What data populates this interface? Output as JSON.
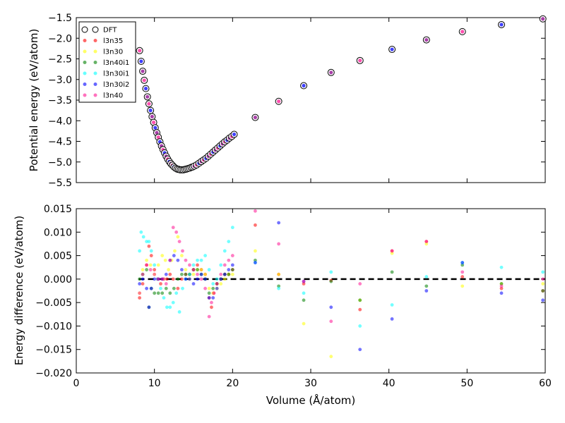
{
  "chart_data": [
    {
      "type": "scatter",
      "ylabel": "Potential energy (eV/atom)",
      "xlim": [
        0,
        60
      ],
      "ylim": [
        -5.5,
        -1.5
      ],
      "xticks": [],
      "yticks": [
        "−1.5",
        "−2.0",
        "−2.5",
        "−3.0",
        "−3.5",
        "−4.0",
        "−4.5",
        "−5.0",
        "−5.5"
      ],
      "ytick_values": [
        -1.5,
        -2.0,
        -2.5,
        -3.0,
        -3.5,
        -4.0,
        -4.5,
        -5.0,
        -5.5
      ],
      "legend_placement": "top-left",
      "legend": [
        {
          "name": "DFT",
          "color": "#ffffff",
          "style": "open-circle"
        },
        {
          "name": "l3n35",
          "color": "#ff0000"
        },
        {
          "name": "l3n30",
          "color": "#ffff00"
        },
        {
          "name": "l3n40i1",
          "color": "#008000"
        },
        {
          "name": "l3n30i1",
          "color": "#00ffff"
        },
        {
          "name": "l3n30i2",
          "color": "#0000ff"
        },
        {
          "name": "l3n40",
          "color": "#ff1493"
        }
      ],
      "x": [
        8.1,
        8.3,
        8.5,
        8.7,
        8.9,
        9.1,
        9.3,
        9.5,
        9.7,
        9.9,
        10.1,
        10.3,
        10.5,
        10.7,
        10.9,
        11.1,
        11.3,
        11.5,
        11.7,
        11.9,
        12.1,
        12.3,
        12.5,
        12.7,
        12.9,
        13.1,
        13.3,
        13.5,
        13.7,
        13.9,
        14.1,
        14.3,
        14.5,
        14.7,
        14.9,
        15.1,
        15.4,
        15.7,
        16.0,
        16.3,
        16.6,
        16.9,
        17.2,
        17.5,
        17.8,
        18.1,
        18.4,
        18.7,
        19.0,
        19.3,
        19.6,
        19.9,
        20.2,
        22.9,
        25.9,
        29.1,
        32.6,
        36.3,
        40.4,
        44.8,
        49.4,
        54.4,
        59.7
      ],
      "y": [
        -2.3,
        -2.56,
        -2.8,
        -3.02,
        -3.22,
        -3.42,
        -3.59,
        -3.75,
        -3.9,
        -4.04,
        -4.17,
        -4.29,
        -4.4,
        -4.51,
        -4.61,
        -4.7,
        -4.78,
        -4.86,
        -4.93,
        -4.99,
        -5.04,
        -5.08,
        -5.12,
        -5.15,
        -5.17,
        -5.18,
        -5.19,
        -5.19,
        -5.19,
        -5.18,
        -5.17,
        -5.16,
        -5.15,
        -5.13,
        -5.12,
        -5.1,
        -5.07,
        -5.03,
        -4.99,
        -4.95,
        -4.91,
        -4.86,
        -4.81,
        -4.76,
        -4.71,
        -4.66,
        -4.61,
        -4.56,
        -4.51,
        -4.47,
        -4.42,
        -4.38,
        -4.33,
        -3.92,
        -3.53,
        -3.15,
        -2.83,
        -2.54,
        -2.27,
        -2.04,
        -1.84,
        -1.67,
        -1.53
      ]
    },
    {
      "type": "scatter",
      "xlabel": "Volume (Å/atom)",
      "ylabel": "Energy difference (eV/atom)",
      "xlim": [
        0,
        60
      ],
      "ylim": [
        -0.02,
        0.015
      ],
      "xticks": [
        "0",
        "10",
        "20",
        "30",
        "40",
        "50",
        "60"
      ],
      "xtick_values": [
        0,
        10,
        20,
        30,
        40,
        50,
        60
      ],
      "yticks": [
        "0.015",
        "0.010",
        "0.005",
        "0.000",
        "−0.005",
        "−0.010",
        "−0.015",
        "−0.020"
      ],
      "ytick_values": [
        0.015,
        0.01,
        0.005,
        0.0,
        -0.005,
        -0.01,
        -0.015,
        -0.02
      ],
      "reference_line": {
        "y": 0,
        "style": "dashed",
        "color": "#000000"
      },
      "series": [
        {
          "name": "l3n35",
          "color": "#ff0000",
          "points": [
            [
              8.1,
              -0.004
            ],
            [
              8.5,
              -0.001
            ],
            [
              9.0,
              0.003
            ],
            [
              9.3,
              0.007
            ],
            [
              9.6,
              0.005
            ],
            [
              10.0,
              0.002
            ],
            [
              10.4,
              0.0
            ],
            [
              10.8,
              -0.001
            ],
            [
              11.2,
              0.0
            ],
            [
              11.6,
              0.0
            ],
            [
              12.0,
              0.001
            ],
            [
              12.4,
              0.0
            ],
            [
              13.0,
              -0.002
            ],
            [
              13.5,
              0.0
            ],
            [
              14.0,
              0.001
            ],
            [
              14.5,
              0.001
            ],
            [
              15.0,
              0.002
            ],
            [
              15.5,
              0.003
            ],
            [
              16.0,
              0.002
            ],
            [
              16.5,
              0.001
            ],
            [
              17.0,
              -0.004
            ],
            [
              17.3,
              -0.006
            ],
            [
              17.6,
              -0.003
            ],
            [
              18.0,
              -0.001
            ],
            [
              18.5,
              0.0
            ],
            [
              19.0,
              0.001
            ],
            [
              19.5,
              0.001
            ],
            [
              20.0,
              0.002
            ],
            [
              22.9,
              0.0115
            ],
            [
              25.9,
              0.001
            ],
            [
              29.1,
              -0.001
            ],
            [
              32.6,
              -0.0003
            ],
            [
              36.3,
              -0.0065
            ],
            [
              40.4,
              0.006
            ],
            [
              44.8,
              0.008
            ],
            [
              49.4,
              0.0005
            ],
            [
              54.4,
              -0.002
            ],
            [
              59.7,
              -0.0025
            ]
          ]
        },
        {
          "name": "l3n30",
          "color": "#ffff00",
          "points": [
            [
              8.1,
              -0.003
            ],
            [
              8.5,
              0.002
            ],
            [
              9.0,
              0.004
            ],
            [
              9.5,
              0.003
            ],
            [
              10.0,
              0.001
            ],
            [
              10.5,
              0.003
            ],
            [
              11.0,
              0.005
            ],
            [
              11.4,
              0.004
            ],
            [
              11.8,
              0.002
            ],
            [
              12.2,
              0.004
            ],
            [
              12.6,
              0.006
            ],
            [
              13.0,
              0.009
            ],
            [
              13.5,
              0.005
            ],
            [
              14.0,
              0.002
            ],
            [
              14.5,
              0.0
            ],
            [
              15.0,
              0.001
            ],
            [
              15.5,
              0.002
            ],
            [
              16.0,
              0.002
            ],
            [
              16.5,
              0.001
            ],
            [
              17.0,
              -0.002
            ],
            [
              17.5,
              -0.003
            ],
            [
              18.0,
              -0.002
            ],
            [
              18.5,
              -0.001
            ],
            [
              19.0,
              0.0
            ],
            [
              19.5,
              0.001
            ],
            [
              20.0,
              0.001
            ],
            [
              22.9,
              0.006
            ],
            [
              25.9,
              0.001
            ],
            [
              29.1,
              -0.0095
            ],
            [
              32.6,
              -0.0165
            ],
            [
              36.3,
              -0.0045
            ],
            [
              40.4,
              0.0055
            ],
            [
              44.8,
              0.0075
            ],
            [
              49.4,
              -0.0015
            ],
            [
              54.4,
              -0.001
            ],
            [
              59.7,
              -0.001
            ]
          ]
        },
        {
          "name": "l3n40i1",
          "color": "#008000",
          "points": [
            [
              8.1,
              0.0
            ],
            [
              8.5,
              0.001
            ],
            [
              9.0,
              0.002
            ],
            [
              9.3,
              -0.006
            ],
            [
              9.6,
              -0.002
            ],
            [
              10.0,
              -0.003
            ],
            [
              10.5,
              -0.003
            ],
            [
              11.0,
              -0.003
            ],
            [
              11.5,
              -0.002
            ],
            [
              12.0,
              -0.003
            ],
            [
              12.5,
              -0.002
            ],
            [
              13.0,
              0.0
            ],
            [
              13.5,
              0.001
            ],
            [
              14.0,
              0.001
            ],
            [
              14.5,
              0.001
            ],
            [
              15.0,
              0.002
            ],
            [
              15.5,
              0.002
            ],
            [
              16.0,
              0.001
            ],
            [
              16.5,
              0.0
            ],
            [
              17.0,
              -0.003
            ],
            [
              17.5,
              -0.002
            ],
            [
              18.0,
              -0.001
            ],
            [
              18.5,
              0.0
            ],
            [
              19.0,
              0.001
            ],
            [
              19.5,
              0.001
            ],
            [
              20.0,
              0.002
            ],
            [
              22.9,
              0.004
            ],
            [
              25.9,
              -0.0015
            ],
            [
              29.1,
              -0.0045
            ],
            [
              32.6,
              -0.0005
            ],
            [
              36.3,
              -0.0045
            ],
            [
              40.4,
              0.0015
            ],
            [
              44.8,
              -0.0015
            ],
            [
              49.4,
              0.003
            ],
            [
              54.4,
              -0.001
            ],
            [
              59.7,
              -0.0025
            ]
          ]
        },
        {
          "name": "l3n30i1",
          "color": "#00ffff",
          "points": [
            [
              8.1,
              0.006
            ],
            [
              8.3,
              0.01
            ],
            [
              8.6,
              0.009
            ],
            [
              9.0,
              0.008
            ],
            [
              9.3,
              0.008
            ],
            [
              9.6,
              0.006
            ],
            [
              10.0,
              0.003
            ],
            [
              10.4,
              0.0
            ],
            [
              10.8,
              -0.002
            ],
            [
              11.2,
              -0.004
            ],
            [
              11.6,
              -0.006
            ],
            [
              12.0,
              -0.006
            ],
            [
              12.4,
              -0.005
            ],
            [
              12.8,
              -0.003
            ],
            [
              13.2,
              -0.007
            ],
            [
              13.6,
              -0.002
            ],
            [
              14.0,
              0.0
            ],
            [
              14.5,
              0.001
            ],
            [
              15.0,
              0.003
            ],
            [
              15.5,
              0.004
            ],
            [
              16.0,
              0.004
            ],
            [
              16.5,
              0.005
            ],
            [
              17.0,
              0.002
            ],
            [
              17.5,
              -0.001
            ],
            [
              18.0,
              0.0
            ],
            [
              18.5,
              0.003
            ],
            [
              19.0,
              0.006
            ],
            [
              19.5,
              0.008
            ],
            [
              20.0,
              0.011
            ],
            [
              22.9,
              0.0035
            ],
            [
              25.9,
              -0.002
            ],
            [
              29.1,
              -0.003
            ],
            [
              32.6,
              0.0015
            ],
            [
              36.3,
              -0.01
            ],
            [
              40.4,
              -0.0055
            ],
            [
              44.8,
              0.0005
            ],
            [
              49.4,
              0.0035
            ],
            [
              54.4,
              0.0025
            ],
            [
              59.7,
              0.0015
            ]
          ]
        },
        {
          "name": "l3n30i2",
          "color": "#0000ff",
          "points": [
            [
              8.1,
              -0.001
            ],
            [
              8.5,
              0.0
            ],
            [
              9.0,
              -0.002
            ],
            [
              9.3,
              -0.006
            ],
            [
              9.6,
              -0.002
            ],
            [
              10.0,
              0.0
            ],
            [
              10.5,
              0.0
            ],
            [
              11.0,
              0.0
            ],
            [
              11.5,
              0.001
            ],
            [
              12.0,
              0.004
            ],
            [
              12.5,
              0.005
            ],
            [
              13.0,
              0.004
            ],
            [
              13.5,
              0.002
            ],
            [
              14.0,
              0.0
            ],
            [
              14.5,
              0.0
            ],
            [
              15.0,
              -0.001
            ],
            [
              15.5,
              0.0
            ],
            [
              16.0,
              0.001
            ],
            [
              16.5,
              0.0
            ],
            [
              17.0,
              -0.004
            ],
            [
              17.5,
              -0.004
            ],
            [
              18.0,
              -0.002
            ],
            [
              18.5,
              0.0
            ],
            [
              19.0,
              0.001
            ],
            [
              19.5,
              0.002
            ],
            [
              20.0,
              0.003
            ],
            [
              22.9,
              0.0035
            ],
            [
              25.9,
              0.012
            ],
            [
              29.1,
              -0.0005
            ],
            [
              32.6,
              -0.006
            ],
            [
              36.3,
              -0.015
            ],
            [
              40.4,
              -0.0085
            ],
            [
              44.8,
              -0.0025
            ],
            [
              49.4,
              0.0035
            ],
            [
              54.4,
              -0.003
            ],
            [
              59.7,
              -0.0045
            ]
          ]
        },
        {
          "name": "l3n40",
          "color": "#ff1493",
          "points": [
            [
              8.1,
              -0.003
            ],
            [
              8.5,
              0.001
            ],
            [
              9.0,
              0.003
            ],
            [
              9.5,
              0.002
            ],
            [
              10.0,
              0.001
            ],
            [
              10.5,
              0.0
            ],
            [
              11.0,
              0.0
            ],
            [
              11.5,
              -0.001
            ],
            [
              12.0,
              0.004
            ],
            [
              12.4,
              0.011
            ],
            [
              12.8,
              0.01
            ],
            [
              13.2,
              0.008
            ],
            [
              13.6,
              0.006
            ],
            [
              14.0,
              0.004
            ],
            [
              14.5,
              0.003
            ],
            [
              15.0,
              0.002
            ],
            [
              15.5,
              0.001
            ],
            [
              16.0,
              0.0
            ],
            [
              16.5,
              -0.002
            ],
            [
              17.0,
              -0.008
            ],
            [
              17.3,
              -0.005
            ],
            [
              17.6,
              -0.003
            ],
            [
              18.0,
              -0.001
            ],
            [
              18.5,
              0.001
            ],
            [
              19.0,
              0.003
            ],
            [
              19.5,
              0.004
            ],
            [
              20.0,
              0.005
            ],
            [
              22.9,
              0.0145
            ],
            [
              25.9,
              0.0075
            ],
            [
              29.1,
              -0.0005
            ],
            [
              32.6,
              -0.009
            ],
            [
              36.3,
              -0.001
            ],
            [
              40.4,
              0.006
            ],
            [
              44.8,
              0.008
            ],
            [
              49.4,
              0.0015
            ],
            [
              54.4,
              -0.0015
            ],
            [
              59.7,
              0.0
            ]
          ]
        }
      ]
    }
  ]
}
